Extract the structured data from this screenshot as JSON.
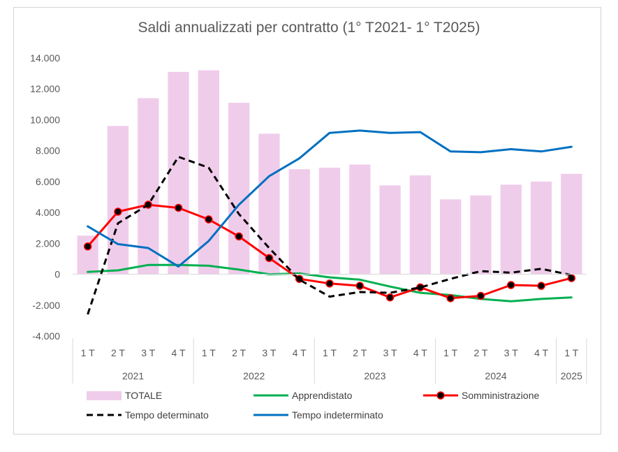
{
  "chart_data": {
    "type": "bar",
    "title": "Saldi annualizzati per contratto (1° T2021- 1° T2025)",
    "ylim": [
      -4000,
      14000
    ],
    "yticks": [
      -4000,
      -2000,
      0,
      2000,
      4000,
      6000,
      8000,
      10000,
      12000,
      14000
    ],
    "ytick_labels": [
      "-4.000",
      "-2.000",
      "0",
      "2.000",
      "4.000",
      "6.000",
      "8.000",
      "10.000",
      "12.000",
      "14.000"
    ],
    "grid": false,
    "legend_position": "bottom",
    "categories": [
      "1 T",
      "2 T",
      "3 T",
      "4 T",
      "1 T",
      "2 T",
      "3 T",
      "4 T",
      "1 T",
      "2 T",
      "3 T",
      "4 T",
      "1 T",
      "2 T",
      "3 T",
      "4 T",
      "1 T"
    ],
    "years": [
      {
        "label": "2021",
        "count": 4
      },
      {
        "label": "2022",
        "count": 4
      },
      {
        "label": "2023",
        "count": 4
      },
      {
        "label": "2024",
        "count": 4
      },
      {
        "label": "2025",
        "count": 1
      }
    ],
    "series": [
      {
        "name": "TOTALE",
        "kind": "bar",
        "color": "#f0cceb",
        "values": [
          2500,
          9600,
          11400,
          13100,
          13200,
          11100,
          9100,
          6800,
          6900,
          7100,
          5750,
          6400,
          4850,
          5100,
          5800,
          6000,
          6500
        ]
      },
      {
        "name": "Apprendistato",
        "kind": "line",
        "color": "#00b050",
        "values": [
          150,
          250,
          600,
          600,
          550,
          300,
          0,
          50,
          -200,
          -350,
          -800,
          -1200,
          -1350,
          -1600,
          -1750,
          -1600,
          -1500
        ]
      },
      {
        "name": "Somministrazione",
        "kind": "line-marker",
        "color": "#ff0000",
        "values": [
          1800,
          4050,
          4500,
          4300,
          3550,
          2450,
          1050,
          -300,
          -600,
          -750,
          -1500,
          -850,
          -1550,
          -1400,
          -700,
          -750,
          -250
        ]
      },
      {
        "name": "Tempo determinato",
        "kind": "dashed",
        "color": "#000000",
        "values": [
          -2600,
          3300,
          4500,
          7600,
          6900,
          3900,
          1700,
          -350,
          -1450,
          -1150,
          -1200,
          -850,
          -300,
          200,
          100,
          350,
          -50
        ]
      },
      {
        "name": "Tempo indeterminato",
        "kind": "line",
        "color": "#0070c0",
        "values": [
          3100,
          1950,
          1700,
          500,
          2150,
          4500,
          6350,
          7500,
          9150,
          9300,
          9150,
          9200,
          7950,
          7900,
          8100,
          7950,
          8250
        ]
      }
    ]
  }
}
